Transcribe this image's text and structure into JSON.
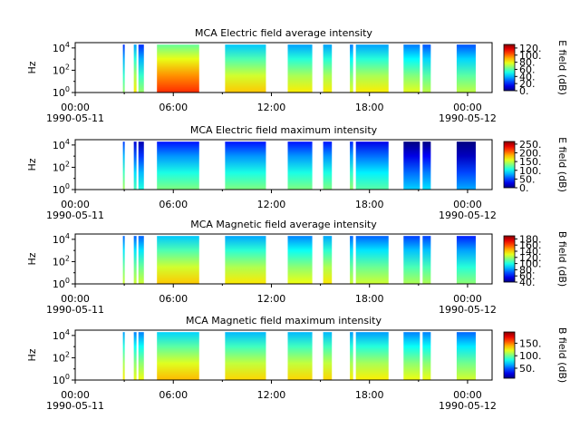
{
  "figure": {
    "x_tick_labels": [
      "00:00",
      "06:00",
      "12:00",
      "18:00",
      "00:00"
    ],
    "date_labels": [
      "1990-05-11",
      "1990-05-12"
    ]
  },
  "chart_data": [
    {
      "type": "heatmap",
      "title": "MCA  Electric field average intensity",
      "ylabel": "Hz",
      "y_scale": "log",
      "ylim": [
        1,
        30000
      ],
      "y_tick_labels": [
        "10^0",
        "10^2",
        "10^4"
      ],
      "x": {
        "start": "1990-05-11 00:00",
        "end": "1990-05-12 01:30"
      },
      "colorbar": {
        "label": "E field (dB)",
        "min": 0,
        "max": 130,
        "tick_labels": [
          "120.",
          "100.",
          "80.",
          "60.",
          "40.",
          "20.",
          "0."
        ],
        "tick_values": [
          120,
          100,
          80,
          60,
          40,
          20,
          0
        ]
      },
      "segments": [
        {
          "start": "02:55",
          "end": "03:00",
          "level": 45
        },
        {
          "start": "03:35",
          "end": "03:45",
          "level": 60
        },
        {
          "start": "03:52",
          "end": "04:12",
          "level": 45
        },
        {
          "start": "05:00",
          "end": "07:35",
          "level": 85
        },
        {
          "start": "09:10",
          "end": "11:40",
          "level": 65
        },
        {
          "start": "13:00",
          "end": "14:30",
          "level": 60
        },
        {
          "start": "15:10",
          "end": "15:42",
          "level": 60
        },
        {
          "start": "16:48",
          "end": "17:00",
          "level": 55
        },
        {
          "start": "17:10",
          "end": "19:10",
          "level": 60
        },
        {
          "start": "20:05",
          "end": "21:05",
          "level": 55
        },
        {
          "start": "21:15",
          "end": "21:45",
          "level": 50
        },
        {
          "start": "23:20",
          "end": "24:30",
          "level": 50
        }
      ]
    },
    {
      "type": "heatmap",
      "title": "MCA  Electric field maximum intensity",
      "ylabel": "Hz",
      "y_scale": "log",
      "ylim": [
        1,
        30000
      ],
      "y_tick_labels": [
        "10^0",
        "10^2",
        "10^4"
      ],
      "x": {
        "start": "1990-05-11 00:00",
        "end": "1990-05-12 01:30"
      },
      "colorbar": {
        "label": "E field (dB)",
        "min": 0,
        "max": 265,
        "tick_labels": [
          "250.",
          "200.",
          "150.",
          "100.",
          "50.",
          "0."
        ],
        "tick_values": [
          250,
          200,
          150,
          100,
          50,
          0
        ]
      },
      "segments": [
        {
          "start": "02:55",
          "end": "03:00",
          "level": 95
        },
        {
          "start": "03:35",
          "end": "03:45",
          "level": 70
        },
        {
          "start": "03:52",
          "end": "04:12",
          "level": 60
        },
        {
          "start": "05:00",
          "end": "07:35",
          "level": 85
        },
        {
          "start": "09:10",
          "end": "11:40",
          "level": 85
        },
        {
          "start": "13:00",
          "end": "14:30",
          "level": 85
        },
        {
          "start": "15:10",
          "end": "15:42",
          "level": 85
        },
        {
          "start": "16:48",
          "end": "17:00",
          "level": 90
        },
        {
          "start": "17:10",
          "end": "19:10",
          "level": 75
        },
        {
          "start": "20:05",
          "end": "21:05",
          "level": 40
        },
        {
          "start": "21:15",
          "end": "21:45",
          "level": 45
        },
        {
          "start": "23:20",
          "end": "24:30",
          "level": 30
        }
      ]
    },
    {
      "type": "heatmap",
      "title": "MCA  Magnetic field average intensity",
      "ylabel": "Hz",
      "y_scale": "log",
      "ylim": [
        1,
        30000
      ],
      "y_tick_labels": [
        "10^0",
        "10^2",
        "10^4"
      ],
      "x": {
        "start": "1990-05-11 00:00",
        "end": "1990-05-12 01:30"
      },
      "colorbar": {
        "label": "B field (dB)",
        "min": 40,
        "max": 190,
        "tick_labels": [
          "180.",
          "160.",
          "140.",
          "120.",
          "100.",
          "80.",
          "60.",
          "40."
        ],
        "tick_values": [
          180,
          160,
          140,
          120,
          100,
          80,
          60,
          40
        ]
      },
      "segments": [
        {
          "start": "02:55",
          "end": "03:00",
          "level": 100
        },
        {
          "start": "03:35",
          "end": "03:45",
          "level": 100
        },
        {
          "start": "03:52",
          "end": "04:12",
          "level": 100
        },
        {
          "start": "05:00",
          "end": "07:35",
          "level": 115
        },
        {
          "start": "09:10",
          "end": "11:40",
          "level": 110
        },
        {
          "start": "13:00",
          "end": "14:30",
          "level": 105
        },
        {
          "start": "15:10",
          "end": "15:42",
          "level": 110
        },
        {
          "start": "16:48",
          "end": "17:00",
          "level": 100
        },
        {
          "start": "17:10",
          "end": "19:10",
          "level": 100
        },
        {
          "start": "20:05",
          "end": "21:05",
          "level": 95
        },
        {
          "start": "21:15",
          "end": "21:45",
          "level": 95
        },
        {
          "start": "23:20",
          "end": "24:30",
          "level": 90
        }
      ]
    },
    {
      "type": "heatmap",
      "title": "MCA  Magnetic field maximum intensity",
      "ylabel": "Hz",
      "y_scale": "log",
      "ylim": [
        1,
        30000
      ],
      "y_tick_labels": [
        "10^0",
        "10^2",
        "10^4"
      ],
      "x": {
        "start": "1990-05-11 00:00",
        "end": "1990-05-12 01:30"
      },
      "colorbar": {
        "label": "B field (dB)",
        "min": 10,
        "max": 195,
        "tick_labels": [
          "150.",
          "100.",
          "50."
        ],
        "tick_values": [
          150,
          100,
          50
        ]
      },
      "segments": [
        {
          "start": "02:55",
          "end": "03:00",
          "level": 95
        },
        {
          "start": "03:35",
          "end": "03:45",
          "level": 90
        },
        {
          "start": "03:52",
          "end": "04:12",
          "level": 90
        },
        {
          "start": "05:00",
          "end": "07:35",
          "level": 105
        },
        {
          "start": "09:10",
          "end": "11:40",
          "level": 100
        },
        {
          "start": "13:00",
          "end": "14:30",
          "level": 100
        },
        {
          "start": "15:10",
          "end": "15:42",
          "level": 100
        },
        {
          "start": "16:48",
          "end": "17:00",
          "level": 95
        },
        {
          "start": "17:10",
          "end": "19:10",
          "level": 95
        },
        {
          "start": "20:05",
          "end": "21:05",
          "level": 90
        },
        {
          "start": "21:15",
          "end": "21:45",
          "level": 90
        },
        {
          "start": "23:20",
          "end": "24:30",
          "level": 85
        }
      ]
    }
  ]
}
